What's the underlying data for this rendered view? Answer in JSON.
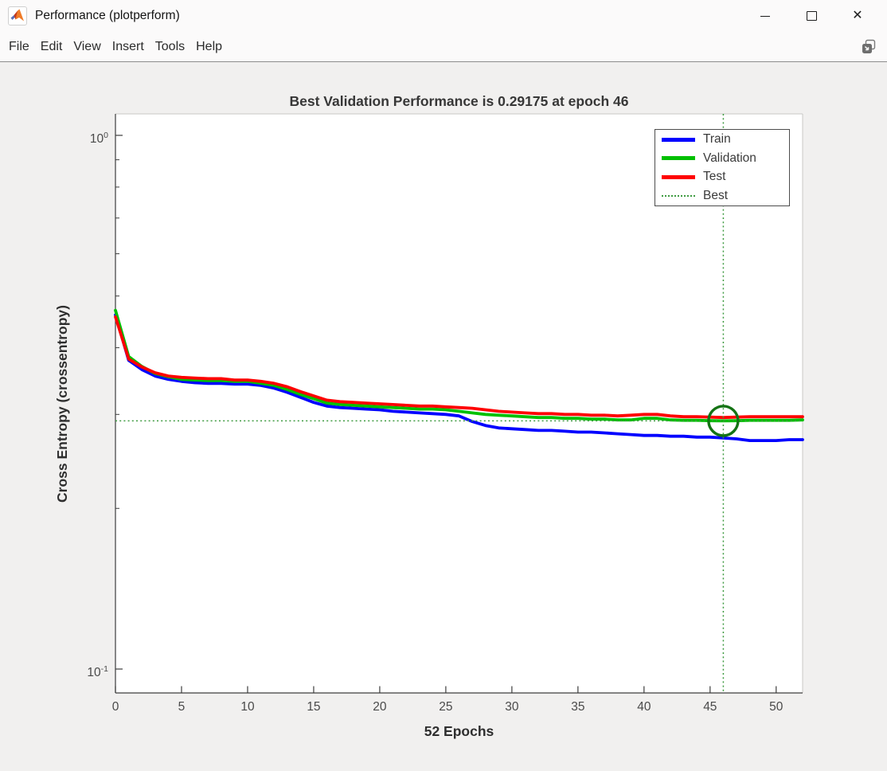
{
  "window": {
    "title": "Performance (plotperform)",
    "controls": {
      "minimize": "minimize",
      "maximize": "maximize",
      "close_glyph": "✕"
    }
  },
  "menu": {
    "items": [
      "File",
      "Edit",
      "View",
      "Insert",
      "Tools",
      "Help"
    ]
  },
  "chart_data": {
    "type": "line",
    "title": "Best Validation Performance is 0.29175 at epoch 46",
    "xlabel": "52 Epochs",
    "ylabel": "Cross Entropy  (crossentropy)",
    "xlim": [
      0,
      52
    ],
    "x_ticks": [
      0,
      5,
      10,
      15,
      20,
      25,
      30,
      35,
      40,
      45,
      50
    ],
    "x_start": 0,
    "x_step": 1,
    "y_axis": {
      "scale": "log",
      "ylim": [
        0.0902,
        1.097
      ],
      "major_ticks": [
        {
          "value": 1,
          "base": "10",
          "exp": "0"
        },
        {
          "value": 0.1,
          "base": "10",
          "exp": "-1"
        }
      ],
      "minor_ticks": [
        0.9,
        0.8,
        0.7,
        0.6,
        0.5,
        0.4,
        0.3,
        0.2
      ]
    },
    "grid": false,
    "series": [
      {
        "name": "Train",
        "color": "#0000ff",
        "values": [
          0.461,
          0.379,
          0.364,
          0.354,
          0.349,
          0.346,
          0.344,
          0.343,
          0.343,
          0.342,
          0.342,
          0.34,
          0.336,
          0.33,
          0.323,
          0.316,
          0.311,
          0.309,
          0.308,
          0.307,
          0.306,
          0.304,
          0.303,
          0.302,
          0.301,
          0.3,
          0.298,
          0.291,
          0.286,
          0.283,
          0.282,
          0.281,
          0.28,
          0.28,
          0.279,
          0.278,
          0.278,
          0.277,
          0.276,
          0.275,
          0.274,
          0.274,
          0.273,
          0.273,
          0.272,
          0.272,
          0.271,
          0.27,
          0.268,
          0.268,
          0.268,
          0.269,
          0.269
        ]
      },
      {
        "name": "Validation",
        "color": "#00c000",
        "values": [
          0.47,
          0.385,
          0.369,
          0.358,
          0.353,
          0.349,
          0.348,
          0.347,
          0.347,
          0.346,
          0.346,
          0.343,
          0.34,
          0.334,
          0.327,
          0.321,
          0.315,
          0.313,
          0.312,
          0.311,
          0.31,
          0.309,
          0.308,
          0.307,
          0.307,
          0.306,
          0.304,
          0.302,
          0.3,
          0.299,
          0.298,
          0.297,
          0.296,
          0.296,
          0.295,
          0.295,
          0.294,
          0.294,
          0.293,
          0.293,
          0.295,
          0.295,
          0.293,
          0.2925,
          0.2925,
          0.292,
          0.29175,
          0.292,
          0.2925,
          0.2925,
          0.2925,
          0.2925,
          0.293
        ]
      },
      {
        "name": "Test",
        "color": "#ff0000",
        "values": [
          0.457,
          0.381,
          0.368,
          0.359,
          0.354,
          0.352,
          0.351,
          0.35,
          0.35,
          0.348,
          0.348,
          0.346,
          0.343,
          0.338,
          0.331,
          0.325,
          0.319,
          0.317,
          0.316,
          0.315,
          0.314,
          0.313,
          0.312,
          0.311,
          0.311,
          0.31,
          0.309,
          0.308,
          0.306,
          0.304,
          0.303,
          0.302,
          0.301,
          0.301,
          0.3,
          0.3,
          0.299,
          0.299,
          0.298,
          0.299,
          0.3,
          0.3,
          0.298,
          0.297,
          0.297,
          0.2965,
          0.296,
          0.2965,
          0.297,
          0.297,
          0.297,
          0.297,
          0.297
        ]
      }
    ],
    "best": {
      "label": "Best",
      "epoch": 46,
      "value": 0.29175,
      "line_color": "#3f9b41",
      "circle_color": "#147314"
    },
    "legend": {
      "position": "top-right",
      "entries": [
        "Train",
        "Validation",
        "Test",
        "Best"
      ]
    }
  }
}
